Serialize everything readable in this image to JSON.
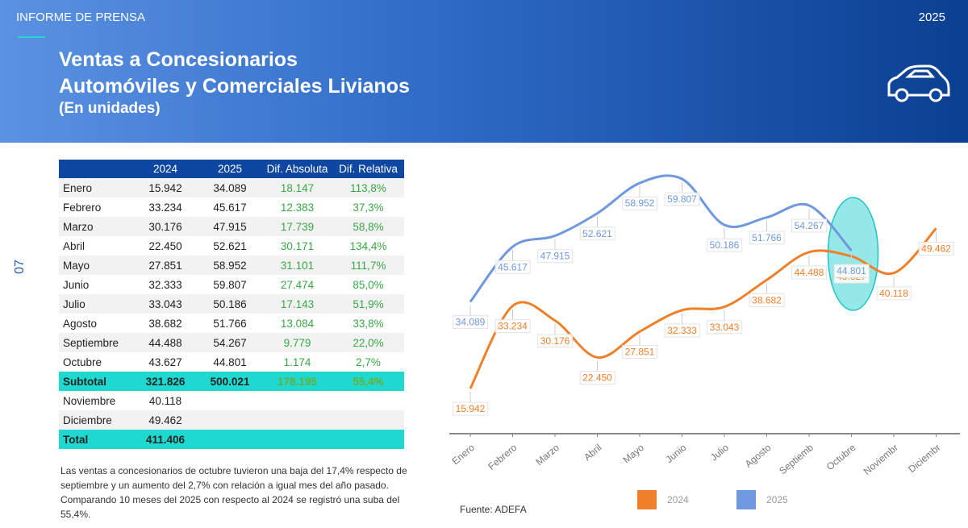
{
  "header": {
    "label": "INFORME DE PRENSA",
    "year": "2025",
    "title": [
      "Ventas a Concesionarios",
      "Automóviles y Comerciales Livianos"
    ],
    "subtitle": "(En unidades)"
  },
  "page_number": "07",
  "table": {
    "columns": [
      "2024",
      "2025",
      "Dif. Absoluta",
      "Dif. Relativa"
    ],
    "rows": [
      [
        "Enero",
        "15.942",
        "34.089",
        "18.147",
        "113,8%"
      ],
      [
        "Febrero",
        "33.234",
        "45.617",
        "12.383",
        "37,3%"
      ],
      [
        "Marzo",
        "30.176",
        "47.915",
        "17.739",
        "58,8%"
      ],
      [
        "Abril",
        "22.450",
        "52.621",
        "30.171",
        "134,4%"
      ],
      [
        "Mayo",
        "27.851",
        "58.952",
        "31.101",
        "111,7%"
      ],
      [
        "Junio",
        "32.333",
        "59.807",
        "27.474",
        "85,0%"
      ],
      [
        "Julio",
        "33.043",
        "50.186",
        "17.143",
        "51,9%"
      ],
      [
        "Agosto",
        "38.682",
        "51.766",
        "13.084",
        "33,8%"
      ],
      [
        "Septiembre",
        "44.488",
        "54.267",
        "9.779",
        "22,0%"
      ],
      [
        "Octubre",
        "43.627",
        "44.801",
        "1.174",
        "2,7%"
      ],
      [
        "Subtotal",
        "321.826",
        "500.021",
        "178.195",
        "55,4%"
      ],
      [
        "Noviembre",
        "40.118"
      ],
      [
        "Diciembre",
        "49.462"
      ],
      [
        "Total",
        "411.406"
      ]
    ]
  },
  "note": "Las ventas a concesionarios de octubre tuvieron una baja del 17,4% respecto de septiembre y un aumento del 2,7% con relación a igual mes del año pasado. Comparando 10 meses del 2025 con respecto al 2024 se registró una suba del 55,4%.",
  "source": "Fuente: ADEFA",
  "chart_data": {
    "type": "line",
    "categories": [
      "Enero",
      "Febrero",
      "Marzo",
      "Abril",
      "Mayo",
      "Junio",
      "Julio",
      "Agosto",
      "Septiemb",
      "Octubre",
      "Noviembr",
      "Diciembr"
    ],
    "series": [
      {
        "name": "2024",
        "color": "#f07f2a",
        "values": [
          15942,
          33234,
          30176,
          22450,
          27851,
          32333,
          33043,
          38682,
          44488,
          43627,
          40118,
          49462
        ],
        "value_labels": [
          "15.942",
          "33.234",
          "30.176",
          "22.450",
          "27.851",
          "32.333",
          "33.043",
          "38.682",
          "44.488",
          "43.627",
          "40.118",
          "49.462"
        ]
      },
      {
        "name": "2025",
        "color": "#6f98df",
        "values": [
          34089,
          45617,
          47915,
          52621,
          58952,
          59807,
          50186,
          51766,
          54267,
          44801,
          null,
          null
        ],
        "value_labels": [
          "34.089",
          "45.617",
          "47.915",
          "52.621",
          "58.952",
          "59.807",
          "50.186",
          "51.766",
          "54.267",
          "44.801",
          null,
          null
        ]
      }
    ],
    "legend": "bottom",
    "smooth": true
  }
}
